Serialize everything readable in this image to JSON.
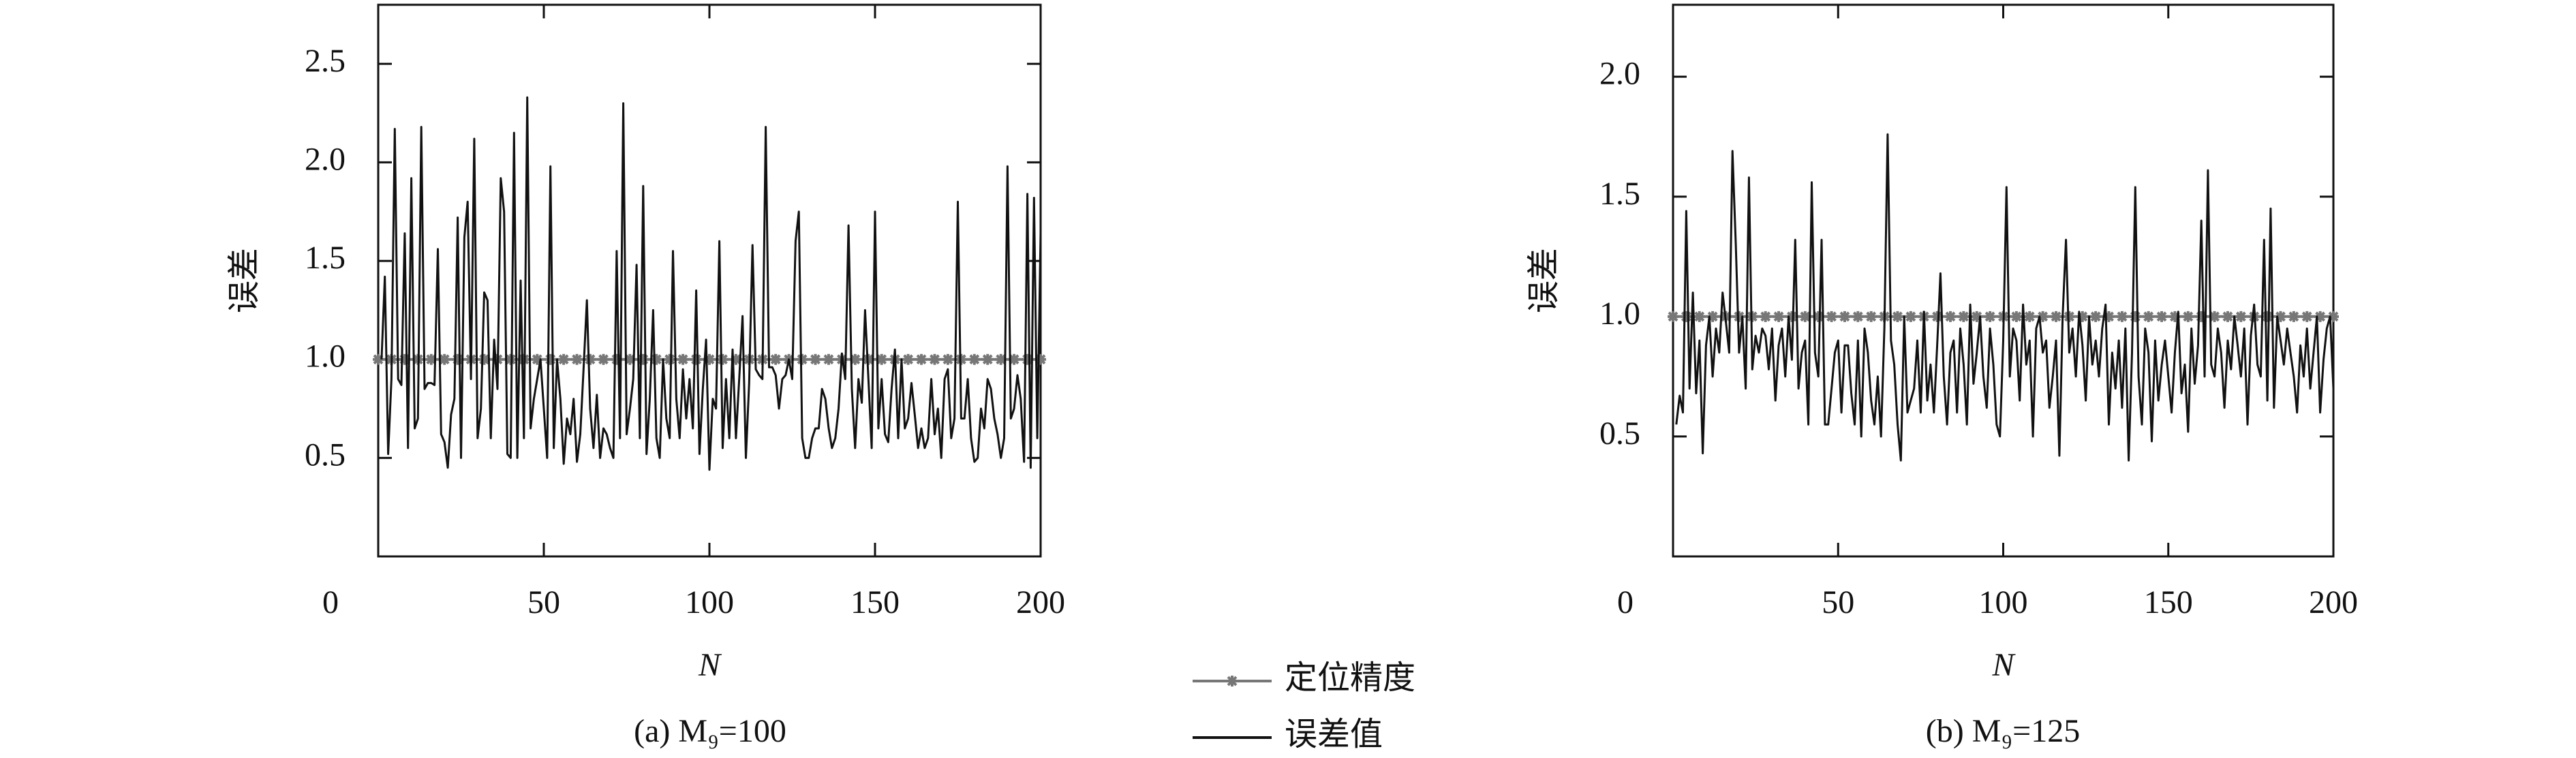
{
  "chart_data": [
    {
      "type": "line",
      "ylabel": "误差",
      "xlabel": "N",
      "caption": "(a) M₉=100",
      "xlim": [
        0,
        200
      ],
      "ylim": [
        0,
        2.8
      ],
      "xticks": [
        0,
        50,
        100,
        150,
        200
      ],
      "yticks": [
        0.5,
        {
          "value": 1,
          "label": "1.0"
        },
        1.5,
        {
          "value": 2,
          "label": "2.0"
        },
        2.5
      ],
      "x": [
        1,
        2,
        3,
        4,
        5,
        6,
        7,
        8,
        9,
        10,
        11,
        12,
        13,
        14,
        15,
        16,
        17,
        18,
        19,
        20,
        21,
        22,
        23,
        24,
        25,
        26,
        27,
        28,
        29,
        30,
        31,
        32,
        33,
        34,
        35,
        36,
        37,
        38,
        39,
        40,
        41,
        42,
        43,
        44,
        45,
        46,
        47,
        48,
        49,
        50,
        51,
        52,
        53,
        54,
        55,
        56,
        57,
        58,
        59,
        60,
        61,
        62,
        63,
        64,
        65,
        66,
        67,
        68,
        69,
        70,
        71,
        72,
        73,
        74,
        75,
        76,
        77,
        78,
        79,
        80,
        81,
        82,
        83,
        84,
        85,
        86,
        87,
        88,
        89,
        90,
        91,
        92,
        93,
        94,
        95,
        96,
        97,
        98,
        99,
        100,
        101,
        102,
        103,
        104,
        105,
        106,
        107,
        108,
        109,
        110,
        111,
        112,
        113,
        114,
        115,
        116,
        117,
        118,
        119,
        120,
        121,
        122,
        123,
        124,
        125,
        126,
        127,
        128,
        129,
        130,
        131,
        132,
        133,
        134,
        135,
        136,
        137,
        138,
        139,
        140,
        141,
        142,
        143,
        144,
        145,
        146,
        147,
        148,
        149,
        150,
        151,
        152,
        153,
        154,
        155,
        156,
        157,
        158,
        159,
        160,
        161,
        162,
        163,
        164,
        165,
        166,
        167,
        168,
        169,
        170,
        171,
        172,
        173,
        174,
        175,
        176,
        177,
        178,
        179,
        180,
        181,
        182,
        183,
        184,
        185,
        186,
        187,
        188,
        189,
        190,
        191,
        192,
        193,
        194,
        195,
        196,
        197,
        198,
        199,
        200
      ],
      "series": [
        {
          "name": "定位精度",
          "color": "#777777",
          "marker": true,
          "x": [
            0,
            4,
            8,
            12,
            16,
            20,
            24,
            28,
            32,
            36,
            40,
            44,
            48,
            52,
            56,
            60,
            64,
            68,
            72,
            76,
            80,
            84,
            88,
            92,
            96,
            100,
            104,
            108,
            112,
            116,
            120,
            124,
            128,
            132,
            136,
            140,
            144,
            148,
            152,
            156,
            160,
            164,
            168,
            172,
            176,
            180,
            184,
            188,
            192,
            196,
            200
          ],
          "values": [
            1,
            1,
            1,
            1,
            1,
            1,
            1,
            1,
            1,
            1,
            1,
            1,
            1,
            1,
            1,
            1,
            1,
            1,
            1,
            1,
            1,
            1,
            1,
            1,
            1,
            1,
            1,
            1,
            1,
            1,
            1,
            1,
            1,
            1,
            1,
            1,
            1,
            1,
            1,
            1,
            1,
            1,
            1,
            1,
            1,
            1,
            1,
            1,
            1,
            1,
            1
          ]
        },
        {
          "name": "误差值",
          "color": "#111111",
          "values": [
            1.0,
            1.42,
            0.52,
            0.9,
            2.17,
            0.9,
            0.87,
            1.64,
            0.55,
            1.92,
            0.65,
            0.7,
            2.18,
            0.85,
            0.88,
            0.88,
            0.87,
            1.56,
            0.62,
            0.58,
            0.45,
            0.72,
            0.8,
            1.72,
            0.5,
            1.62,
            1.8,
            0.9,
            2.12,
            0.6,
            0.75,
            1.34,
            1.3,
            0.6,
            1.1,
            0.85,
            1.92,
            1.75,
            0.52,
            0.5,
            2.15,
            0.5,
            1.4,
            0.6,
            2.33,
            0.65,
            0.8,
            0.9,
            1.0,
            0.75,
            0.5,
            1.98,
            0.55,
            1.0,
            0.8,
            0.47,
            0.7,
            0.62,
            0.8,
            0.48,
            0.62,
            0.95,
            1.3,
            0.75,
            0.55,
            0.82,
            0.5,
            0.65,
            0.62,
            0.55,
            0.5,
            1.55,
            0.6,
            2.3,
            0.62,
            0.75,
            0.9,
            1.48,
            0.6,
            1.88,
            0.52,
            0.8,
            1.25,
            0.6,
            0.5,
            1.0,
            0.7,
            0.6,
            1.55,
            0.8,
            0.6,
            0.95,
            0.7,
            0.9,
            0.65,
            1.35,
            0.52,
            0.85,
            1.1,
            0.44,
            0.8,
            0.75,
            1.6,
            0.55,
            0.9,
            0.6,
            1.05,
            0.6,
            0.9,
            1.22,
            0.5,
            0.88,
            1.58,
            0.95,
            0.92,
            0.9,
            2.18,
            0.96,
            0.96,
            0.92,
            0.75,
            0.9,
            0.92,
            1.0,
            0.9,
            1.6,
            1.75,
            0.6,
            0.5,
            0.5,
            0.6,
            0.65,
            0.65,
            0.85,
            0.8,
            0.65,
            0.55,
            0.6,
            0.75,
            1.03,
            0.9,
            1.68,
            0.85,
            0.55,
            0.9,
            0.78,
            1.25,
            0.9,
            0.55,
            1.75,
            0.65,
            0.9,
            0.62,
            0.58,
            0.85,
            1.05,
            0.6,
            1.0,
            0.65,
            0.7,
            0.88,
            0.72,
            0.55,
            0.65,
            0.55,
            0.6,
            0.9,
            0.62,
            0.75,
            0.5,
            0.9,
            0.95,
            0.6,
            0.7,
            1.8,
            0.7,
            0.7,
            0.9,
            0.6,
            0.48,
            0.5,
            0.75,
            0.65,
            0.9,
            0.85,
            0.7,
            0.62,
            0.5,
            0.6,
            1.98,
            0.7,
            0.75,
            0.92,
            0.8,
            0.48,
            1.84,
            0.45,
            1.82,
            0.6,
            1.64
          ]
        }
      ]
    },
    {
      "type": "line",
      "ylabel": "误差",
      "xlabel": "N",
      "caption": "(b) M₉=125",
      "xlim": [
        0,
        200
      ],
      "ylim": [
        0,
        2.3
      ],
      "xticks": [
        0,
        50,
        100,
        150,
        200
      ],
      "yticks": [
        0.5,
        {
          "value": 1,
          "label": "1.0"
        },
        1.5,
        {
          "value": 2,
          "label": "2.0"
        }
      ],
      "x": [
        1,
        2,
        3,
        4,
        5,
        6,
        7,
        8,
        9,
        10,
        11,
        12,
        13,
        14,
        15,
        16,
        17,
        18,
        19,
        20,
        21,
        22,
        23,
        24,
        25,
        26,
        27,
        28,
        29,
        30,
        31,
        32,
        33,
        34,
        35,
        36,
        37,
        38,
        39,
        40,
        41,
        42,
        43,
        44,
        45,
        46,
        47,
        48,
        49,
        50,
        51,
        52,
        53,
        54,
        55,
        56,
        57,
        58,
        59,
        60,
        61,
        62,
        63,
        64,
        65,
        66,
        67,
        68,
        69,
        70,
        71,
        72,
        73,
        74,
        75,
        76,
        77,
        78,
        79,
        80,
        81,
        82,
        83,
        84,
        85,
        86,
        87,
        88,
        89,
        90,
        91,
        92,
        93,
        94,
        95,
        96,
        97,
        98,
        99,
        100,
        101,
        102,
        103,
        104,
        105,
        106,
        107,
        108,
        109,
        110,
        111,
        112,
        113,
        114,
        115,
        116,
        117,
        118,
        119,
        120,
        121,
        122,
        123,
        124,
        125,
        126,
        127,
        128,
        129,
        130,
        131,
        132,
        133,
        134,
        135,
        136,
        137,
        138,
        139,
        140,
        141,
        142,
        143,
        144,
        145,
        146,
        147,
        148,
        149,
        150,
        151,
        152,
        153,
        154,
        155,
        156,
        157,
        158,
        159,
        160,
        161,
        162,
        163,
        164,
        165,
        166,
        167,
        168,
        169,
        170,
        171,
        172,
        173,
        174,
        175,
        176,
        177,
        178,
        179,
        180,
        181,
        182,
        183,
        184,
        185,
        186,
        187,
        188,
        189,
        190,
        191,
        192,
        193,
        194,
        195,
        196,
        197,
        198,
        199,
        200
      ],
      "series": [
        {
          "color": "#777777",
          "marker": true,
          "x": [
            0,
            4,
            8,
            12,
            16,
            20,
            24,
            28,
            32,
            36,
            40,
            44,
            48,
            52,
            56,
            60,
            64,
            68,
            72,
            76,
            80,
            84,
            88,
            92,
            96,
            100,
            104,
            108,
            112,
            116,
            120,
            124,
            128,
            132,
            136,
            140,
            144,
            148,
            152,
            156,
            160,
            164,
            168,
            172,
            176,
            180,
            184,
            188,
            192,
            196,
            200
          ],
          "values": [
            1,
            1,
            1,
            1,
            1,
            1,
            1,
            1,
            1,
            1,
            1,
            1,
            1,
            1,
            1,
            1,
            1,
            1,
            1,
            1,
            1,
            1,
            1,
            1,
            1,
            1,
            1,
            1,
            1,
            1,
            1,
            1,
            1,
            1,
            1,
            1,
            1,
            1,
            1,
            1,
            1,
            1,
            1,
            1,
            1,
            1,
            1,
            1,
            1,
            1,
            1
          ]
        },
        {
          "color": "#111111",
          "values": [
            0.55,
            0.67,
            0.6,
            1.44,
            0.7,
            1.1,
            0.68,
            0.9,
            0.43,
            0.88,
            1.0,
            0.75,
            0.95,
            0.85,
            1.1,
            0.98,
            0.85,
            1.69,
            1.3,
            0.85,
            1.0,
            0.7,
            1.58,
            0.78,
            0.92,
            0.85,
            0.95,
            0.92,
            0.78,
            0.95,
            0.65,
            0.88,
            0.95,
            0.75,
            1.0,
            0.82,
            1.32,
            0.7,
            0.85,
            0.9,
            0.55,
            1.56,
            0.85,
            0.75,
            1.32,
            0.55,
            0.55,
            0.7,
            0.85,
            0.9,
            0.6,
            0.88,
            0.88,
            0.68,
            0.55,
            0.9,
            0.5,
            0.95,
            0.85,
            0.65,
            0.55,
            0.75,
            0.5,
            0.95,
            1.76,
            0.9,
            0.8,
            0.55,
            0.4,
            1.0,
            0.6,
            0.65,
            0.7,
            0.9,
            0.6,
            1.02,
            0.65,
            0.8,
            0.6,
            0.88,
            1.18,
            0.75,
            0.55,
            0.85,
            0.9,
            0.6,
            0.95,
            0.8,
            0.55,
            1.05,
            0.72,
            0.85,
            1.0,
            0.75,
            0.62,
            0.95,
            0.8,
            0.55,
            0.5,
            0.9,
            1.54,
            0.75,
            0.95,
            0.9,
            0.65,
            1.05,
            0.8,
            0.9,
            0.5,
            0.95,
            1.0,
            0.85,
            0.9,
            0.62,
            0.75,
            0.9,
            0.42,
            1.0,
            1.32,
            0.85,
            0.95,
            0.75,
            1.02,
            0.88,
            0.65,
            1.0,
            0.8,
            0.9,
            0.75,
            0.95,
            1.05,
            0.55,
            0.85,
            0.7,
            0.9,
            0.62,
            0.95,
            0.4,
            0.85,
            1.54,
            0.75,
            0.55,
            0.95,
            0.85,
            0.48,
            0.9,
            0.65,
            0.8,
            0.9,
            0.75,
            0.6,
            0.85,
            1.02,
            0.68,
            0.8,
            0.52,
            0.95,
            0.72,
            0.88,
            1.4,
            0.75,
            1.61,
            0.8,
            0.75,
            0.95,
            0.85,
            0.62,
            0.9,
            0.78,
            1.0,
            0.88,
            0.75,
            0.95,
            0.55,
            0.92,
            1.05,
            0.8,
            0.75,
            1.32,
            0.65,
            1.45,
            0.62,
            1.0,
            0.9,
            0.8,
            0.95,
            0.85,
            0.75,
            0.6,
            0.88,
            0.75,
            0.95,
            0.7,
            0.85,
            1.0,
            0.6,
            0.82,
            0.95,
            1.0,
            0.7
          ]
        }
      ]
    }
  ]
}
